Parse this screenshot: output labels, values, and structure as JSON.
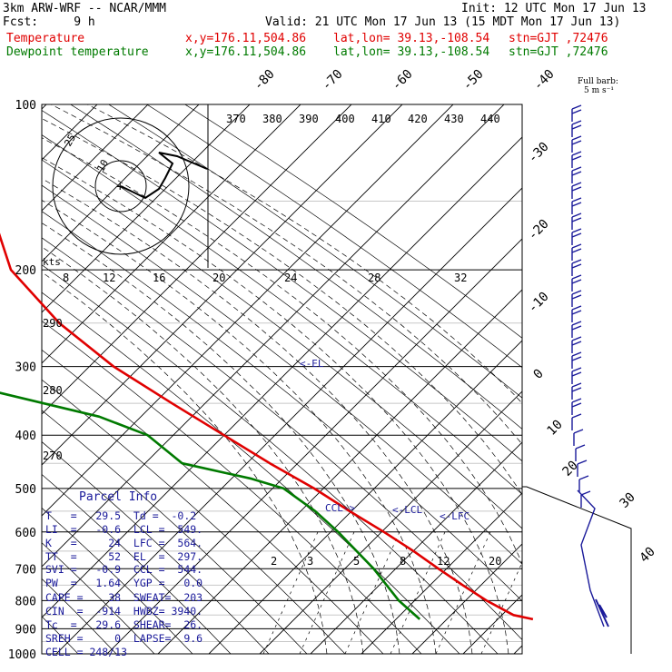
{
  "header": {
    "model": "3km ARW-WRF -- NCAR/MMM",
    "init": "Init: 12 UTC Mon 17 Jun 13",
    "fcst": "Fcst:     9 h",
    "valid": "Valid: 21 UTC Mon 17 Jun 13 (15 MDT Mon 17 Jun 13)",
    "temp_line": {
      "label": "Temperature",
      "xy": "x,y=176.11,504.86",
      "latlon": "lat,lon= 39.13,-108.54",
      "stn": "stn=GJT ,72476"
    },
    "dew_line": {
      "label": "Dewpoint temperature",
      "xy": "x,y=176.11,504.86",
      "latlon": "lat,lon= 39.13,-108.54",
      "stn": "stn=GJT ,72476"
    }
  },
  "barb_legend": {
    "line1": "Full barb:",
    "line2": "5 m s⁻¹"
  },
  "parcel_info": {
    "title": "Parcel Info",
    "rows": [
      "T   =   29.5  Td =  -0.2",
      "LI  =   -0.6  LCL =  549.",
      "K   =     24  LFC =  564.",
      "TT  =     52  EL  =  297.",
      "SVI =   -0.9  CCL =  544.",
      "PW  =   1.64  YGP =   0.0",
      "CAPE =    38  SWEAT=  203",
      "CIN  =  -914  HWBZ= 3940.",
      "Tc  =   29.6  SHEAR=  26.",
      "SREH =     0  LAPSE=  9.6",
      "CELL = 248/13"
    ]
  },
  "chart_data": {
    "type": "line",
    "chart_kind": "skew-T log-p",
    "y_axis": {
      "label": "pressure (hPa)",
      "ticks": [
        100,
        200,
        300,
        400,
        500,
        600,
        700,
        800,
        900,
        1000
      ],
      "scale": "log"
    },
    "temperature_ticks_top": [
      "-80",
      "-70",
      "-60",
      "-50",
      "-40"
    ],
    "temperature_ticks_right": [
      "-30",
      "-20",
      "-10",
      "0",
      "10",
      "20",
      "30",
      "40"
    ],
    "theta_labels": [
      "370",
      "380",
      "390",
      "400",
      "410",
      "420",
      "430",
      "440"
    ],
    "theta_labels_left": [
      "290",
      "280",
      "270"
    ],
    "mixing_ratio_labels": [
      "2",
      "3",
      "5",
      "8",
      "12",
      "20"
    ],
    "hodograph": {
      "speed_unit_label": "kts",
      "speed_ticks": [
        "8",
        "12",
        "16",
        "20",
        "24",
        "28",
        "32"
      ],
      "ring_labels": [
        "10",
        "25"
      ]
    },
    "level_annotations": [
      {
        "text": "<-EL",
        "p": 297
      },
      {
        "text": "CCL->",
        "p": 544
      },
      {
        "text": "<-LCL",
        "p": 549
      },
      {
        "text": "<-LFC",
        "p": 564
      }
    ],
    "series": [
      {
        "name": "Temperature",
        "color": "#e00000",
        "points": [
          [
            100,
            -49
          ],
          [
            150,
            -53
          ],
          [
            200,
            -57
          ],
          [
            250,
            -52
          ],
          [
            300,
            -44
          ],
          [
            350,
            -34
          ],
          [
            400,
            -25
          ],
          [
            450,
            -17
          ],
          [
            500,
            -9
          ],
          [
            550,
            -3
          ],
          [
            600,
            3
          ],
          [
            650,
            8
          ],
          [
            700,
            12
          ],
          [
            750,
            16
          ],
          [
            800,
            20
          ],
          [
            850,
            25
          ],
          [
            865,
            29.5
          ]
        ]
      },
      {
        "name": "Dewpoint temperature",
        "color": "#007a00",
        "points": [
          [
            100,
            -68
          ],
          [
            125,
            -76
          ],
          [
            150,
            -81
          ],
          [
            200,
            -88
          ],
          [
            250,
            -93
          ],
          [
            300,
            -90
          ],
          [
            330,
            -81
          ],
          [
            370,
            -55
          ],
          [
            400,
            -45
          ],
          [
            450,
            -40
          ],
          [
            480,
            -24
          ],
          [
            500,
            -17
          ],
          [
            550,
            -12
          ],
          [
            600,
            -9
          ],
          [
            700,
            -5
          ],
          [
            800,
            -3
          ],
          [
            865,
            -0.2
          ]
        ]
      }
    ]
  }
}
